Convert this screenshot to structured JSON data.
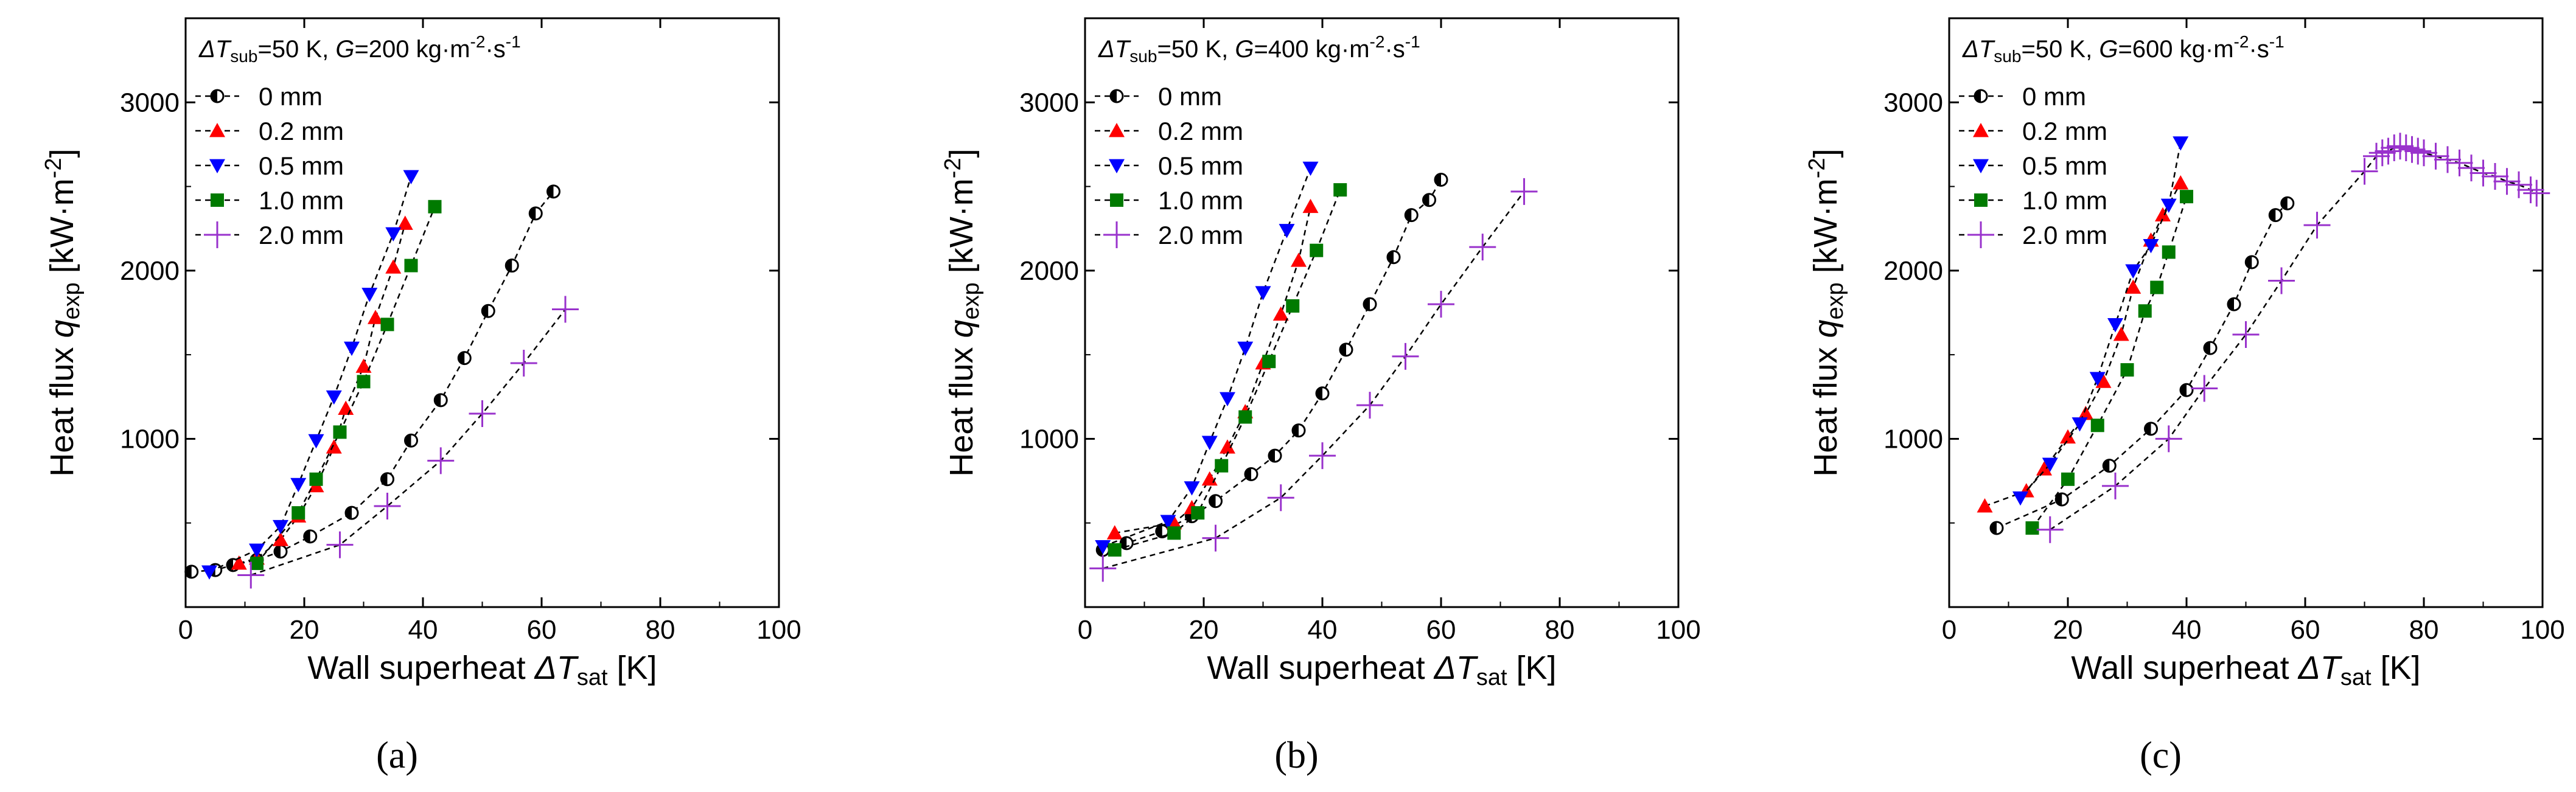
{
  "figure": {
    "panel_labels": [
      "(a)",
      "(b)",
      "(c)"
    ]
  },
  "colors": {
    "0 mm": "#000000",
    "0.2 mm": "#ff0000",
    "0.5 mm": "#0000ff",
    "1.0 mm": "#007a00",
    "2.0 mm": "#9932cc"
  },
  "chart_data": [
    {
      "type": "scatter",
      "title": "ΔTsub=50 K, G=200 kg·m-2·s-1",
      "title_parts": {
        "dt": "ΔT",
        "dt_sub": "sub",
        "mid": "=50 K, ",
        "g": "G",
        "g_rest": "=200 kg·m",
        "e1": "-2",
        "dot": "·s",
        "e2": "-1"
      },
      "xlabel": "Wall superheat ΔTsat [K]",
      "xlabel_parts": {
        "main": "Wall superheat ",
        "sym": "ΔT",
        "sub": "sat",
        "unit": " [K]"
      },
      "ylabel": "Heat flux qexp [kW·m-2]",
      "ylabel_parts": {
        "main": "Heat flux ",
        "sym": "q",
        "sub": "exp",
        "unit": " [kW·m",
        "sup": "-2",
        "close": "]"
      },
      "xlim": [
        0,
        100
      ],
      "ylim": [
        0,
        3500
      ],
      "xticks": [
        0,
        20,
        40,
        60,
        80,
        100
      ],
      "yticks": [
        1000,
        2000,
        3000
      ],
      "grid": false,
      "legend_position": "top-left",
      "series": [
        {
          "name": "0 mm",
          "marker": "circle-half",
          "x": [
            1,
            5,
            8,
            12,
            16,
            21,
            28,
            34,
            38,
            43,
            47,
            51,
            55,
            59,
            62
          ],
          "y": [
            210,
            220,
            250,
            280,
            330,
            420,
            560,
            760,
            990,
            1230,
            1480,
            1760,
            2030,
            2340,
            2470
          ]
        },
        {
          "name": "0.2 mm",
          "marker": "triangle-up",
          "x": [
            9,
            12,
            16,
            19,
            22,
            25,
            27,
            30,
            32,
            35,
            37
          ],
          "y": [
            260,
            290,
            400,
            540,
            720,
            950,
            1180,
            1430,
            1720,
            2020,
            2280
          ]
        },
        {
          "name": "0.5 mm",
          "marker": "triangle-down",
          "x": [
            4,
            12,
            16,
            19,
            22,
            25,
            28,
            31,
            35,
            38
          ],
          "y": [
            210,
            340,
            480,
            730,
            990,
            1250,
            1540,
            1860,
            2220,
            2560
          ]
        },
        {
          "name": "1.0 mm",
          "marker": "square",
          "x": [
            12,
            19,
            22,
            26,
            30,
            34,
            38,
            42
          ],
          "y": [
            260,
            560,
            760,
            1040,
            1340,
            1680,
            2030,
            2380
          ]
        },
        {
          "name": "2.0 mm",
          "marker": "plus",
          "x": [
            11,
            26,
            34,
            43,
            50,
            57,
            64
          ],
          "y": [
            190,
            370,
            600,
            870,
            1150,
            1450,
            1770
          ]
        }
      ]
    },
    {
      "type": "scatter",
      "title": "ΔTsub=50 K, G=400 kg·m-2·s-1",
      "title_parts": {
        "dt": "ΔT",
        "dt_sub": "sub",
        "mid": "=50 K, ",
        "g": "G",
        "g_rest": "=400 kg·m",
        "e1": "-2",
        "dot": "·s",
        "e2": "-1"
      },
      "xlabel": "Wall superheat ΔTsat [K]",
      "xlabel_parts": {
        "main": "Wall superheat ",
        "sym": "ΔT",
        "sub": "sat",
        "unit": " [K]"
      },
      "ylabel": "Heat flux qexp [kW·m-2]",
      "ylabel_parts": {
        "main": "Heat flux ",
        "sym": "q",
        "sub": "exp",
        "unit": " [kW·m",
        "sup": "-2",
        "close": "]"
      },
      "xlim": [
        0,
        100
      ],
      "ylim": [
        0,
        3500
      ],
      "xticks": [
        0,
        20,
        40,
        60,
        80,
        100
      ],
      "yticks": [
        1000,
        2000,
        3000
      ],
      "grid": false,
      "legend_position": "top-left",
      "series": [
        {
          "name": "0 mm",
          "marker": "circle-half",
          "x": [
            3,
            7,
            13,
            18,
            22,
            28,
            32,
            36,
            40,
            44,
            48,
            52,
            55,
            58,
            60
          ],
          "y": [
            340,
            380,
            450,
            540,
            630,
            790,
            900,
            1050,
            1270,
            1530,
            1800,
            2080,
            2330,
            2420,
            2540
          ]
        },
        {
          "name": "0.2 mm",
          "marker": "triangle-up",
          "x": [
            5,
            15,
            18,
            21,
            24,
            27,
            30,
            33,
            36,
            38
          ],
          "y": [
            440,
            500,
            590,
            760,
            950,
            1160,
            1450,
            1740,
            2060,
            2380
          ]
        },
        {
          "name": "0.5 mm",
          "marker": "triangle-down",
          "x": [
            3,
            14,
            18,
            21,
            24,
            27,
            30,
            34,
            38
          ],
          "y": [
            360,
            510,
            710,
            980,
            1240,
            1540,
            1870,
            2240,
            2610
          ]
        },
        {
          "name": "1.0 mm",
          "marker": "square",
          "x": [
            5,
            15,
            19,
            23,
            27,
            31,
            35,
            39,
            43
          ],
          "y": [
            340,
            440,
            560,
            840,
            1130,
            1460,
            1790,
            2120,
            2480
          ]
        },
        {
          "name": "2.0 mm",
          "marker": "plus",
          "x": [
            3,
            22,
            33,
            40,
            48,
            54,
            60,
            67,
            74
          ],
          "y": [
            230,
            410,
            650,
            900,
            1200,
            1490,
            1800,
            2140,
            2470
          ]
        }
      ]
    },
    {
      "type": "scatter",
      "title": "ΔTsub=50 K, G=600 kg·m-2·s-1",
      "title_parts": {
        "dt": "ΔT",
        "dt_sub": "sub",
        "mid": "=50 K, ",
        "g": "G",
        "g_rest": "=600 kg·m",
        "e1": "-2",
        "dot": "·s",
        "e2": "-1"
      },
      "xlabel": "Wall superheat ΔTsat [K]",
      "xlabel_parts": {
        "main": "Wall superheat ",
        "sym": "ΔT",
        "sub": "sat",
        "unit": " [K]"
      },
      "ylabel": "Heat flux qexp [kW·m-2]",
      "ylabel_parts": {
        "main": "Heat flux ",
        "sym": "q",
        "sub": "exp",
        "unit": " [kW·m",
        "sup": "-2",
        "close": "]"
      },
      "xlim": [
        0,
        100
      ],
      "ylim": [
        0,
        3500
      ],
      "xticks": [
        0,
        20,
        40,
        60,
        80,
        100
      ],
      "yticks": [
        1000,
        2000,
        3000
      ],
      "grid": false,
      "legend_position": "top-left",
      "series": [
        {
          "name": "0 mm",
          "marker": "circle-half",
          "x": [
            8,
            19,
            27,
            34,
            40,
            44,
            48,
            51,
            55,
            57
          ],
          "y": [
            470,
            640,
            840,
            1060,
            1290,
            1540,
            1800,
            2050,
            2330,
            2400
          ]
        },
        {
          "name": "0.2 mm",
          "marker": "triangle-up",
          "x": [
            6,
            13,
            16,
            20,
            23,
            26,
            29,
            31,
            34,
            36,
            39
          ],
          "y": [
            600,
            690,
            820,
            1010,
            1150,
            1340,
            1620,
            1900,
            2180,
            2330,
            2520
          ]
        },
        {
          "name": "0.5 mm",
          "marker": "triangle-down",
          "x": [
            12,
            17,
            22,
            25,
            28,
            31,
            34,
            37,
            39
          ],
          "y": [
            650,
            850,
            1090,
            1360,
            1680,
            2000,
            2150,
            2390,
            2760
          ]
        },
        {
          "name": "1.0 mm",
          "marker": "square",
          "x": [
            14,
            20,
            25,
            30,
            33,
            35,
            37,
            40
          ],
          "y": [
            470,
            760,
            1080,
            1410,
            1760,
            1900,
            2110,
            2440
          ]
        },
        {
          "name": "2.0 mm",
          "marker": "plus",
          "x": [
            17,
            28,
            37,
            43,
            50,
            56,
            62,
            70,
            72,
            73,
            74,
            75,
            76,
            77,
            78,
            79,
            80,
            82,
            84,
            86,
            88,
            90,
            92,
            94,
            96,
            98,
            99
          ],
          "y": [
            460,
            720,
            1000,
            1300,
            1620,
            1940,
            2270,
            2590,
            2680,
            2700,
            2710,
            2730,
            2740,
            2730,
            2720,
            2710,
            2700,
            2680,
            2660,
            2640,
            2610,
            2580,
            2560,
            2530,
            2510,
            2480,
            2460
          ]
        }
      ]
    }
  ]
}
